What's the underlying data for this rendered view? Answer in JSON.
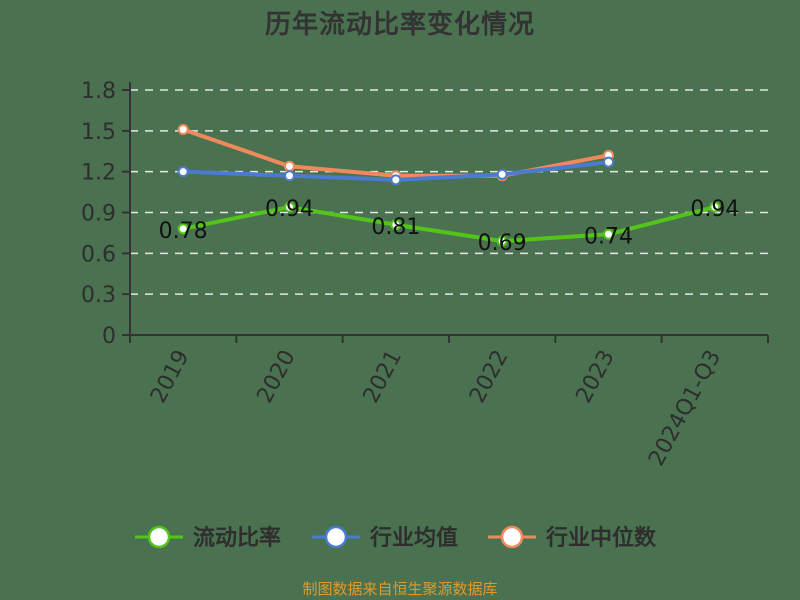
{
  "title": "历年流动比率变化情况",
  "footer": "制图数据来自恒生聚源数据库",
  "colors": {
    "background": "#4a7250",
    "axis": "#333333",
    "grid": "#e6e6e6",
    "current_ratio": "#52c41a",
    "industry_mean": "#4a7bd1",
    "industry_median": "#f08a5d"
  },
  "chart_data": {
    "type": "line",
    "title": "历年流动比率变化情况",
    "xlabel": "",
    "ylabel": "",
    "ylim": [
      0,
      1.8
    ],
    "yticks": [
      0,
      0.3,
      0.6,
      0.9,
      1.2,
      1.5,
      1.8
    ],
    "ytick_labels": [
      "0",
      "0.3",
      "0.6",
      "0.9",
      "1.2",
      "1.5",
      "1.8"
    ],
    "categories": [
      "2019",
      "2020",
      "2021",
      "2022",
      "2023",
      "2024Q1-Q3"
    ],
    "grid": "horizontal dashed",
    "legend_position": "bottom",
    "series": [
      {
        "name": "流动比率",
        "color": "#52c41a",
        "values": [
          0.78,
          0.94,
          0.81,
          0.69,
          0.74,
          0.94
        ],
        "labels": [
          "0.78",
          "0.94",
          "0.81",
          "0.69",
          "0.74",
          "0.94"
        ]
      },
      {
        "name": "行业均值",
        "color": "#4a7bd1",
        "values": [
          1.2,
          1.17,
          1.14,
          1.18,
          1.27,
          null
        ]
      },
      {
        "name": "行业中位数",
        "color": "#f08a5d",
        "values": [
          1.51,
          1.24,
          1.17,
          1.17,
          1.32,
          null
        ]
      }
    ]
  }
}
